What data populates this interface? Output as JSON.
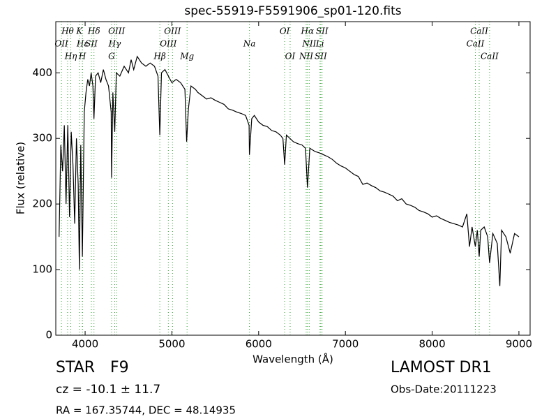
{
  "chart_data": {
    "type": "line",
    "title": "spec-55919-F5591906_sp01-120.fits",
    "x_label": "Wavelength (Å)",
    "y_label": "Flux (relative)",
    "xlim": [
      3662,
      9129
    ],
    "ylim": [
      0,
      478
    ],
    "xticks": [
      4000,
      5000,
      6000,
      7000,
      8000,
      9000
    ],
    "yticks": [
      0,
      100,
      200,
      300,
      400
    ],
    "grid": false,
    "line_color": "#000000",
    "marker_color": "#2ca02c",
    "lines": [
      {
        "label": "Hθ",
        "x": 3798
      },
      {
        "label": "OII",
        "x": 3727
      },
      {
        "label": "Hη",
        "x": 3835
      },
      {
        "label": "K",
        "x": 3934
      },
      {
        "label": "Hε",
        "x": 3970
      },
      {
        "label": "H",
        "x": 3968
      },
      {
        "label": "Hδ",
        "x": 4102
      },
      {
        "label": "SII",
        "x": 4072
      },
      {
        "label": "G",
        "x": 4305
      },
      {
        "label": "OIII",
        "x": 4363
      },
      {
        "label": "Hγ",
        "x": 4341
      },
      {
        "label": "Hβ",
        "x": 4861
      },
      {
        "label": "OIII",
        "x": 5007
      },
      {
        "label": "OIII",
        "x": 4959
      },
      {
        "label": "Mg",
        "x": 5175
      },
      {
        "label": "OI",
        "x": 6300
      },
      {
        "label": "Na",
        "x": 5894
      },
      {
        "label": "OI",
        "x": 6363
      },
      {
        "label": "Hα",
        "x": 6563
      },
      {
        "label": "NII",
        "x": 6583
      },
      {
        "label": "NII",
        "x": 6548
      },
      {
        "label": "SII",
        "x": 6731
      },
      {
        "label": "Li",
        "x": 6707
      },
      {
        "label": "SII",
        "x": 6716
      },
      {
        "label": "CaII",
        "x": 8542
      },
      {
        "label": "CaII",
        "x": 8498
      },
      {
        "label": "CaII",
        "x": 8662
      }
    ],
    "series": [
      {
        "name": "flux",
        "color": "#000000",
        "x": [
          3700,
          3720,
          3740,
          3760,
          3780,
          3800,
          3820,
          3840,
          3860,
          3880,
          3900,
          3920,
          3934,
          3950,
          3968,
          3990,
          4010,
          4030,
          4050,
          4070,
          4090,
          4102,
          4120,
          4150,
          4180,
          4210,
          4240,
          4270,
          4300,
          4305,
          4320,
          4341,
          4360,
          4400,
          4450,
          4500,
          4530,
          4560,
          4600,
          4650,
          4700,
          4750,
          4800,
          4840,
          4861,
          4880,
          4920,
          4960,
          5000,
          5050,
          5100,
          5150,
          5170,
          5190,
          5220,
          5270,
          5300,
          5350,
          5400,
          5450,
          5500,
          5550,
          5600,
          5650,
          5700,
          5750,
          5800,
          5850,
          5890,
          5894,
          5920,
          5950,
          6000,
          6050,
          6100,
          6150,
          6200,
          6250,
          6280,
          6300,
          6320,
          6400,
          6450,
          6500,
          6540,
          6563,
          6590,
          6650,
          6700,
          6750,
          6800,
          6850,
          6900,
          6950,
          7000,
          7050,
          7100,
          7150,
          7200,
          7250,
          7300,
          7350,
          7400,
          7450,
          7500,
          7550,
          7600,
          7650,
          7700,
          7750,
          7800,
          7850,
          7900,
          7950,
          8000,
          8050,
          8100,
          8150,
          8200,
          8250,
          8300,
          8350,
          8400,
          8430,
          8460,
          8498,
          8520,
          8542,
          8560,
          8600,
          8640,
          8662,
          8700,
          8750,
          8780,
          8800,
          8850,
          8900,
          8950,
          9000
        ],
        "values": [
          150,
          290,
          250,
          320,
          200,
          320,
          180,
          310,
          260,
          170,
          300,
          230,
          100,
          290,
          120,
          340,
          370,
          390,
          380,
          400,
          380,
          330,
          395,
          400,
          385,
          405,
          390,
          380,
          340,
          240,
          370,
          310,
          400,
          395,
          410,
          400,
          420,
          405,
          425,
          415,
          410,
          415,
          410,
          395,
          305,
          400,
          405,
          395,
          385,
          390,
          385,
          375,
          295,
          345,
          380,
          375,
          370,
          365,
          360,
          362,
          358,
          355,
          352,
          345,
          343,
          340,
          338,
          335,
          320,
          275,
          330,
          335,
          325,
          320,
          318,
          312,
          310,
          305,
          300,
          260,
          305,
          295,
          292,
          290,
          285,
          225,
          285,
          280,
          278,
          275,
          272,
          268,
          262,
          258,
          255,
          250,
          245,
          242,
          230,
          232,
          228,
          225,
          220,
          218,
          215,
          212,
          205,
          208,
          200,
          198,
          195,
          190,
          188,
          185,
          180,
          182,
          178,
          175,
          172,
          170,
          168,
          165,
          185,
          135,
          165,
          135,
          160,
          120,
          160,
          165,
          150,
          110,
          155,
          140,
          75,
          160,
          150,
          125,
          155,
          150
        ]
      }
    ]
  },
  "info": {
    "class": "STAR",
    "subclass": "F9",
    "cz": "cz = -10.1 ± 11.7",
    "coords": "RA = 167.35744, DEC = 48.14935",
    "survey": "LAMOST DR1",
    "date": "Obs-Date:20111223"
  }
}
